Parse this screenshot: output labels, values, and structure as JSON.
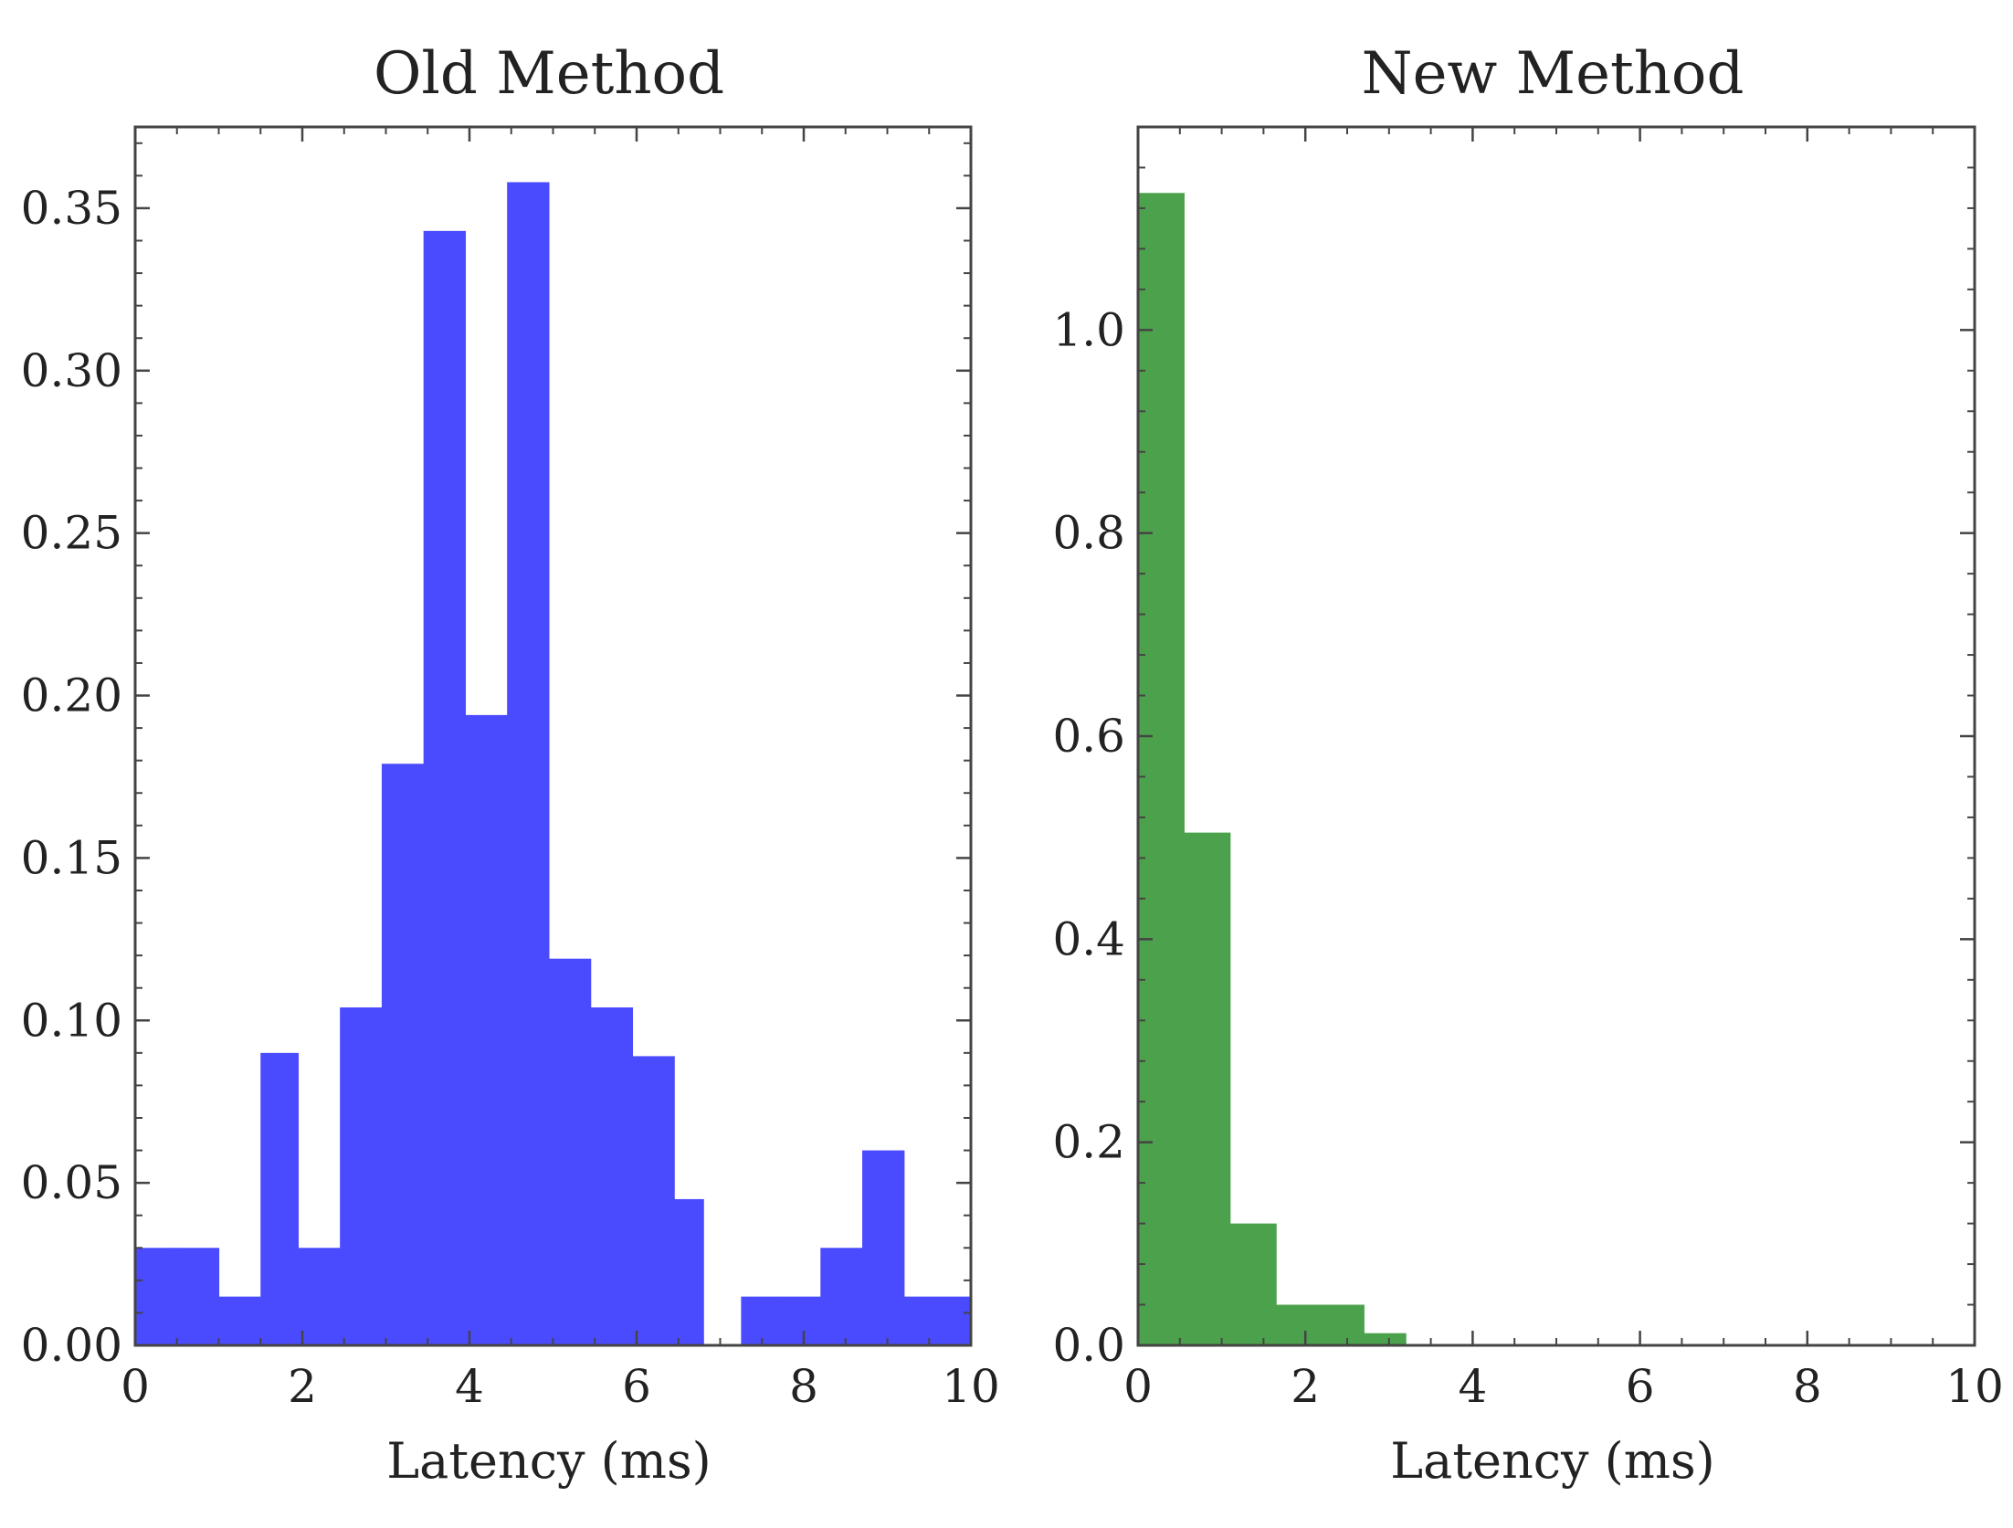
{
  "chart_data": [
    {
      "type": "bar",
      "title": "Old Method",
      "xlabel": "Latency (ms)",
      "ylabel": "",
      "xlim": [
        0,
        10
      ],
      "ylim": [
        0,
        0.375
      ],
      "xticks": [
        "0",
        "2",
        "4",
        "6",
        "8",
        "10"
      ],
      "yticks": [
        "0.00",
        "0.05",
        "0.10",
        "0.15",
        "0.20",
        "0.25",
        "0.30",
        "0.35"
      ],
      "xtick_values": [
        0,
        2,
        4,
        6,
        8,
        10
      ],
      "ytick_values": [
        0,
        0.05,
        0.1,
        0.15,
        0.2,
        0.25,
        0.3,
        0.35
      ],
      "bin_edges": [
        0.0,
        0.48,
        1.0,
        1.5,
        1.95,
        2.45,
        2.95,
        3.45,
        3.95,
        4.45,
        4.95,
        5.45,
        5.95,
        6.45,
        6.8,
        7.25,
        7.7,
        8.2,
        8.7,
        9.2,
        10.0
      ],
      "values": [
        0.03,
        0.03,
        0.015,
        0.09,
        0.03,
        0.104,
        0.179,
        0.343,
        0.194,
        0.358,
        0.119,
        0.104,
        0.089,
        0.045,
        0.0,
        0.015,
        0.015,
        0.03,
        0.06,
        0.015
      ],
      "color": "#4a4aff",
      "grid": false
    },
    {
      "type": "bar",
      "title": "New Method",
      "xlabel": "Latency (ms)",
      "ylabel": "",
      "xlim": [
        0,
        10
      ],
      "ylim": [
        0,
        1.2
      ],
      "xticks": [
        "0",
        "2",
        "4",
        "6",
        "8",
        "10"
      ],
      "yticks": [
        "0.0",
        "0.2",
        "0.4",
        "0.6",
        "0.8",
        "1.0"
      ],
      "xtick_values": [
        0,
        2,
        4,
        6,
        8,
        10
      ],
      "ytick_values": [
        0,
        0.2,
        0.4,
        0.6,
        0.8,
        1.0
      ],
      "bin_edges": [
        0.0,
        0.55,
        1.1,
        1.65,
        2.2,
        2.7,
        3.2
      ],
      "values": [
        1.135,
        0.505,
        0.12,
        0.04,
        0.04,
        0.012
      ],
      "color": "#4ca24c",
      "grid": false
    }
  ]
}
